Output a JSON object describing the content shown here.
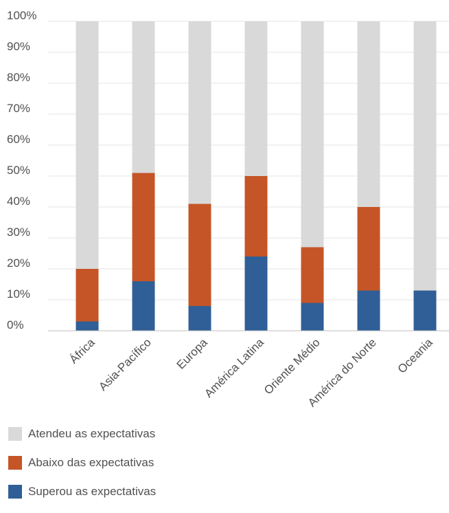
{
  "chart_data": {
    "type": "bar",
    "stacked": true,
    "categories": [
      "África",
      "Asia-Pacífico",
      "Europa",
      "América Latina",
      "Oriente Médio",
      "América do Norte",
      "Oceania"
    ],
    "series": [
      {
        "name": "Superou as expectativas",
        "color": "#2f5f96",
        "values": [
          3,
          16,
          8,
          24,
          9,
          13,
          13
        ]
      },
      {
        "name": "Abaixo das expectativas",
        "color": "#c55527",
        "values": [
          17,
          35,
          33,
          26,
          18,
          27,
          0
        ]
      },
      {
        "name": "Atendeu as expectativas",
        "color": "#d9d9d9",
        "values": [
          80,
          49,
          59,
          50,
          73,
          60,
          87
        ]
      }
    ],
    "y_ticks": [
      "0%",
      "10%",
      "20%",
      "30%",
      "40%",
      "50%",
      "60%",
      "70%",
      "80%",
      "90%",
      "100%"
    ],
    "ylim": [
      0,
      100
    ],
    "grid": true,
    "legend_position": "bottom-left"
  },
  "legend": {
    "items": [
      {
        "label": "Atendeu as expectativas",
        "color": "#d9d9d9"
      },
      {
        "label": "Abaixo das expectativas",
        "color": "#c55527"
      },
      {
        "label": "Superou as expectativas",
        "color": "#2f5f96"
      }
    ]
  }
}
